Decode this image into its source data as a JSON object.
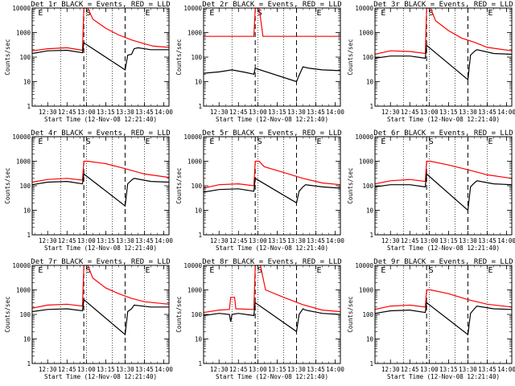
{
  "chart_data": {
    "type": "line",
    "layout": "3x3 grid",
    "shared": {
      "xlabel": "Start Time (12-Nov-08 12:21:40)",
      "ylabel": "Counts/sec",
      "x_ticks": [
        "12:30",
        "12:45",
        "13:00",
        "13:15",
        "13:30",
        "13:45",
        "14:00"
      ],
      "x_tick_minutes": [
        30,
        45,
        60,
        75,
        90,
        105,
        120
      ],
      "xlim_minutes_after_12h": [
        18,
        124
      ],
      "yscale": "log",
      "y_ticks": [
        "1",
        "10",
        "100",
        "1000",
        "10000"
      ],
      "ylim": [
        1,
        10000
      ],
      "legend": "in title",
      "markers": [
        {
          "label": "E",
          "minute": 22,
          "style": "dotted"
        },
        {
          "label": "S",
          "minute": 59,
          "style": "dashed"
        },
        {
          "label": "E",
          "minute": 105,
          "style": "dotted"
        }
      ],
      "dashed_lines_minutes": [
        58,
        90
      ],
      "dotted_lines_minutes": [
        40,
        60,
        80,
        105
      ],
      "colors": {
        "events": "#000000",
        "lld": "#ff0000"
      }
    },
    "panels": [
      {
        "title": "Det 1r BLACK = Events, RED = LLD",
        "profile": "A",
        "events": [
          {
            "x": 18,
            "y": 140
          },
          {
            "x": 30,
            "y": 180
          },
          {
            "x": 45,
            "y": 190
          },
          {
            "x": 57,
            "y": 150
          },
          {
            "x": 58,
            "y": 380
          },
          {
            "x": 90,
            "y": 30
          },
          {
            "x": 92,
            "y": 120
          },
          {
            "x": 95,
            "y": 130
          },
          {
            "x": 97,
            "y": 220
          },
          {
            "x": 100,
            "y": 240
          },
          {
            "x": 110,
            "y": 200
          },
          {
            "x": 124,
            "y": 200
          }
        ],
        "lld": [
          {
            "x": 18,
            "y": 180
          },
          {
            "x": 30,
            "y": 220
          },
          {
            "x": 45,
            "y": 240
          },
          {
            "x": 57,
            "y": 190
          },
          {
            "x": 58,
            "y": 10000
          },
          {
            "x": 61,
            "y": 10000
          },
          {
            "x": 65,
            "y": 3500
          },
          {
            "x": 75,
            "y": 1500
          },
          {
            "x": 85,
            "y": 800
          },
          {
            "x": 95,
            "y": 500
          },
          {
            "x": 105,
            "y": 350
          },
          {
            "x": 112,
            "y": 280
          },
          {
            "x": 124,
            "y": 250
          }
        ]
      },
      {
        "title": "Det 2r BLACK = Events, RED = LLD",
        "profile": "B",
        "events": [
          {
            "x": 18,
            "y": 22
          },
          {
            "x": 30,
            "y": 25
          },
          {
            "x": 40,
            "y": 30
          },
          {
            "x": 50,
            "y": 24
          },
          {
            "x": 57,
            "y": 20
          },
          {
            "x": 58,
            "y": 35
          },
          {
            "x": 90,
            "y": 10
          },
          {
            "x": 92,
            "y": 18
          },
          {
            "x": 95,
            "y": 40
          },
          {
            "x": 100,
            "y": 35
          },
          {
            "x": 110,
            "y": 30
          },
          {
            "x": 124,
            "y": 28
          }
        ],
        "lld": [
          {
            "x": 18,
            "y": 700
          },
          {
            "x": 57,
            "y": 700
          },
          {
            "x": 58,
            "y": 10000
          },
          {
            "x": 61,
            "y": 10000
          },
          {
            "x": 64,
            "y": 700
          },
          {
            "x": 124,
            "y": 700
          }
        ]
      },
      {
        "title": "Det 3r BLACK = Events, RED = LLD",
        "profile": "A",
        "events": [
          {
            "x": 18,
            "y": 90
          },
          {
            "x": 30,
            "y": 110
          },
          {
            "x": 45,
            "y": 110
          },
          {
            "x": 57,
            "y": 90
          },
          {
            "x": 58,
            "y": 300
          },
          {
            "x": 90,
            "y": 12
          },
          {
            "x": 92,
            "y": 120
          },
          {
            "x": 95,
            "y": 170
          },
          {
            "x": 97,
            "y": 200
          },
          {
            "x": 110,
            "y": 140
          },
          {
            "x": 124,
            "y": 130
          }
        ],
        "lld": [
          {
            "x": 18,
            "y": 130
          },
          {
            "x": 30,
            "y": 180
          },
          {
            "x": 45,
            "y": 170
          },
          {
            "x": 57,
            "y": 140
          },
          {
            "x": 58,
            "y": 10000
          },
          {
            "x": 61,
            "y": 10000
          },
          {
            "x": 65,
            "y": 3000
          },
          {
            "x": 75,
            "y": 1200
          },
          {
            "x": 85,
            "y": 600
          },
          {
            "x": 95,
            "y": 400
          },
          {
            "x": 105,
            "y": 250
          },
          {
            "x": 124,
            "y": 180
          }
        ]
      },
      {
        "title": "Det 4r BLACK = Events, RED = LLD",
        "profile": "A",
        "events": [
          {
            "x": 18,
            "y": 110
          },
          {
            "x": 30,
            "y": 140
          },
          {
            "x": 45,
            "y": 150
          },
          {
            "x": 57,
            "y": 120
          },
          {
            "x": 58,
            "y": 300
          },
          {
            "x": 90,
            "y": 15
          },
          {
            "x": 92,
            "y": 120
          },
          {
            "x": 95,
            "y": 170
          },
          {
            "x": 97,
            "y": 200
          },
          {
            "x": 110,
            "y": 150
          },
          {
            "x": 124,
            "y": 140
          }
        ],
        "lld": [
          {
            "x": 18,
            "y": 140
          },
          {
            "x": 30,
            "y": 180
          },
          {
            "x": 45,
            "y": 200
          },
          {
            "x": 57,
            "y": 170
          },
          {
            "x": 58,
            "y": 1000
          },
          {
            "x": 61,
            "y": 1000
          },
          {
            "x": 75,
            "y": 800
          },
          {
            "x": 90,
            "y": 500
          },
          {
            "x": 105,
            "y": 300
          },
          {
            "x": 124,
            "y": 220
          }
        ]
      },
      {
        "title": "Det 5r BLACK = Events, RED = LLD",
        "profile": "A",
        "events": [
          {
            "x": 18,
            "y": 55
          },
          {
            "x": 30,
            "y": 70
          },
          {
            "x": 45,
            "y": 75
          },
          {
            "x": 57,
            "y": 60
          },
          {
            "x": 58,
            "y": 200
          },
          {
            "x": 90,
            "y": 20
          },
          {
            "x": 92,
            "y": 60
          },
          {
            "x": 95,
            "y": 90
          },
          {
            "x": 97,
            "y": 110
          },
          {
            "x": 110,
            "y": 90
          },
          {
            "x": 124,
            "y": 80
          }
        ],
        "lld": [
          {
            "x": 18,
            "y": 80
          },
          {
            "x": 30,
            "y": 110
          },
          {
            "x": 45,
            "y": 120
          },
          {
            "x": 57,
            "y": 100
          },
          {
            "x": 58,
            "y": 1000
          },
          {
            "x": 61,
            "y": 1000
          },
          {
            "x": 65,
            "y": 600
          },
          {
            "x": 80,
            "y": 350
          },
          {
            "x": 95,
            "y": 200
          },
          {
            "x": 110,
            "y": 130
          },
          {
            "x": 124,
            "y": 110
          }
        ]
      },
      {
        "title": "Det 6r BLACK = Events, RED = LLD",
        "profile": "A",
        "events": [
          {
            "x": 18,
            "y": 90
          },
          {
            "x": 30,
            "y": 110
          },
          {
            "x": 45,
            "y": 110
          },
          {
            "x": 57,
            "y": 90
          },
          {
            "x": 58,
            "y": 300
          },
          {
            "x": 90,
            "y": 10
          },
          {
            "x": 92,
            "y": 90
          },
          {
            "x": 95,
            "y": 130
          },
          {
            "x": 97,
            "y": 160
          },
          {
            "x": 110,
            "y": 120
          },
          {
            "x": 124,
            "y": 110
          }
        ],
        "lld": [
          {
            "x": 18,
            "y": 120
          },
          {
            "x": 30,
            "y": 160
          },
          {
            "x": 45,
            "y": 180
          },
          {
            "x": 57,
            "y": 150
          },
          {
            "x": 58,
            "y": 1000
          },
          {
            "x": 61,
            "y": 1000
          },
          {
            "x": 75,
            "y": 700
          },
          {
            "x": 90,
            "y": 450
          },
          {
            "x": 105,
            "y": 280
          },
          {
            "x": 124,
            "y": 200
          }
        ]
      },
      {
        "title": "Det 7r BLACK = Events, RED = LLD",
        "profile": "A",
        "events": [
          {
            "x": 18,
            "y": 130
          },
          {
            "x": 30,
            "y": 160
          },
          {
            "x": 45,
            "y": 170
          },
          {
            "x": 57,
            "y": 140
          },
          {
            "x": 58,
            "y": 400
          },
          {
            "x": 90,
            "y": 15
          },
          {
            "x": 92,
            "y": 130
          },
          {
            "x": 95,
            "y": 170
          },
          {
            "x": 97,
            "y": 240
          },
          {
            "x": 110,
            "y": 200
          },
          {
            "x": 124,
            "y": 200
          }
        ],
        "lld": [
          {
            "x": 18,
            "y": 180
          },
          {
            "x": 30,
            "y": 240
          },
          {
            "x": 45,
            "y": 260
          },
          {
            "x": 57,
            "y": 220
          },
          {
            "x": 58,
            "y": 10000
          },
          {
            "x": 61,
            "y": 10000
          },
          {
            "x": 65,
            "y": 3000
          },
          {
            "x": 75,
            "y": 1200
          },
          {
            "x": 85,
            "y": 700
          },
          {
            "x": 95,
            "y": 450
          },
          {
            "x": 105,
            "y": 330
          },
          {
            "x": 124,
            "y": 260
          }
        ]
      },
      {
        "title": "Det 8r BLACK = Events, RED = LLD",
        "profile": "C",
        "events": [
          {
            "x": 18,
            "y": 90
          },
          {
            "x": 30,
            "y": 110
          },
          {
            "x": 38,
            "y": 100
          },
          {
            "x": 39,
            "y": 50
          },
          {
            "x": 40,
            "y": 100
          },
          {
            "x": 45,
            "y": 110
          },
          {
            "x": 57,
            "y": 90
          },
          {
            "x": 58,
            "y": 300
          },
          {
            "x": 90,
            "y": 20
          },
          {
            "x": 92,
            "y": 100
          },
          {
            "x": 95,
            "y": 170
          },
          {
            "x": 97,
            "y": 150
          },
          {
            "x": 110,
            "y": 110
          },
          {
            "x": 124,
            "y": 100
          }
        ],
        "lld": [
          {
            "x": 18,
            "y": 120
          },
          {
            "x": 30,
            "y": 150
          },
          {
            "x": 38,
            "y": 160
          },
          {
            "x": 39,
            "y": 500
          },
          {
            "x": 42,
            "y": 500
          },
          {
            "x": 43,
            "y": 170
          },
          {
            "x": 57,
            "y": 160
          },
          {
            "x": 58,
            "y": 10000
          },
          {
            "x": 62,
            "y": 10000
          },
          {
            "x": 66,
            "y": 1000
          },
          {
            "x": 80,
            "y": 500
          },
          {
            "x": 95,
            "y": 250
          },
          {
            "x": 110,
            "y": 150
          },
          {
            "x": 124,
            "y": 130
          }
        ]
      },
      {
        "title": "Det 9r BLACK = Events, RED = LLD",
        "profile": "A",
        "events": [
          {
            "x": 18,
            "y": 110
          },
          {
            "x": 30,
            "y": 140
          },
          {
            "x": 45,
            "y": 150
          },
          {
            "x": 57,
            "y": 120
          },
          {
            "x": 58,
            "y": 300
          },
          {
            "x": 90,
            "y": 15
          },
          {
            "x": 92,
            "y": 110
          },
          {
            "x": 95,
            "y": 170
          },
          {
            "x": 97,
            "y": 220
          },
          {
            "x": 110,
            "y": 170
          },
          {
            "x": 124,
            "y": 160
          }
        ],
        "lld": [
          {
            "x": 18,
            "y": 160
          },
          {
            "x": 30,
            "y": 220
          },
          {
            "x": 45,
            "y": 240
          },
          {
            "x": 57,
            "y": 200
          },
          {
            "x": 58,
            "y": 1000
          },
          {
            "x": 61,
            "y": 1000
          },
          {
            "x": 75,
            "y": 700
          },
          {
            "x": 90,
            "y": 400
          },
          {
            "x": 105,
            "y": 260
          },
          {
            "x": 124,
            "y": 200
          }
        ]
      }
    ]
  }
}
